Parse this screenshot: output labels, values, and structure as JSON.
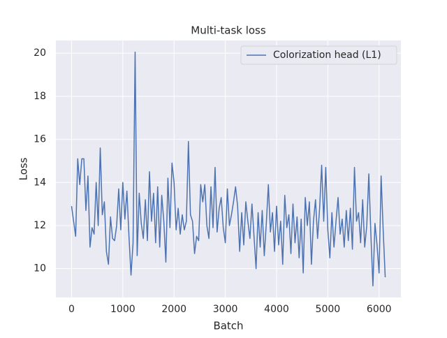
{
  "chart_data": {
    "type": "line",
    "title": "Multi-task loss",
    "x_label": "Batch",
    "y_label": "Loss",
    "x": [
      0,
      40,
      80,
      120,
      160,
      200,
      240,
      280,
      320,
      360,
      400,
      440,
      480,
      520,
      560,
      600,
      640,
      680,
      720,
      760,
      800,
      840,
      880,
      920,
      960,
      1000,
      1040,
      1080,
      1120,
      1160,
      1200,
      1240,
      1280,
      1320,
      1360,
      1400,
      1440,
      1480,
      1520,
      1560,
      1600,
      1640,
      1680,
      1720,
      1760,
      1800,
      1840,
      1880,
      1920,
      1960,
      2000,
      2040,
      2080,
      2120,
      2160,
      2200,
      2240,
      2280,
      2320,
      2360,
      2400,
      2440,
      2480,
      2520,
      2560,
      2600,
      2640,
      2680,
      2720,
      2760,
      2800,
      2840,
      2880,
      2920,
      2960,
      3000,
      3040,
      3080,
      3120,
      3160,
      3200,
      3240,
      3280,
      3320,
      3360,
      3400,
      3440,
      3480,
      3520,
      3560,
      3600,
      3640,
      3680,
      3720,
      3760,
      3800,
      3840,
      3880,
      3920,
      3960,
      4000,
      4040,
      4080,
      4120,
      4160,
      4200,
      4240,
      4280,
      4320,
      4360,
      4400,
      4440,
      4480,
      4520,
      4560,
      4600,
      4640,
      4680,
      4720,
      4760,
      4800,
      4840,
      4880,
      4920,
      4960,
      5000,
      5040,
      5080,
      5120,
      5160,
      5200,
      5240,
      5280,
      5320,
      5360,
      5400,
      5440,
      5480,
      5520,
      5560,
      5600,
      5640,
      5680,
      5720,
      5760,
      5800,
      5840,
      5880,
      5920,
      5960,
      6000,
      6040,
      6080,
      6120
    ],
    "series": [
      {
        "name": "Colorization head (L1)",
        "color": "#4c72b0",
        "values": [
          12.9,
          12.2,
          11.5,
          15.1,
          13.9,
          15.1,
          15.1,
          12.7,
          14.3,
          11.0,
          11.9,
          11.6,
          14.0,
          12.0,
          15.6,
          12.5,
          13.1,
          10.8,
          10.2,
          12.4,
          11.4,
          11.3,
          12.0,
          13.7,
          11.8,
          14.0,
          12.3,
          13.6,
          11.5,
          9.7,
          11.2,
          20.05,
          10.6,
          13.5,
          12.1,
          11.4,
          13.2,
          11.3,
          14.5,
          12.2,
          13.5,
          11.2,
          13.8,
          11.0,
          13.4,
          12.2,
          10.3,
          14.2,
          11.9,
          14.9,
          14.0,
          11.8,
          12.8,
          11.6,
          12.5,
          11.8,
          12.2,
          15.9,
          12.5,
          12.2,
          10.7,
          11.5,
          11.3,
          13.9,
          13.1,
          13.9,
          12.0,
          11.4,
          13.8,
          11.9,
          14.7,
          11.7,
          12.8,
          13.3,
          11.9,
          11.2,
          13.7,
          12.0,
          12.5,
          13.1,
          13.8,
          12.9,
          10.8,
          12.6,
          11.1,
          13.1,
          12.2,
          11.4,
          13.0,
          11.5,
          10.0,
          12.6,
          11.0,
          12.7,
          10.6,
          12.1,
          13.9,
          11.7,
          12.6,
          10.8,
          12.9,
          11.1,
          12.2,
          10.2,
          13.4,
          11.9,
          12.5,
          10.7,
          13.0,
          11.2,
          12.4,
          10.5,
          12.3,
          9.8,
          13.3,
          12.0,
          13.1,
          10.2,
          12.2,
          13.2,
          11.4,
          12.8,
          14.8,
          12.2,
          14.7,
          11.8,
          10.5,
          12.6,
          11.0,
          12.2,
          13.3,
          11.6,
          12.3,
          11.0,
          12.7,
          11.3,
          12.8,
          10.9,
          14.7,
          12.2,
          12.6,
          11.2,
          13.2,
          11.0,
          12.0,
          14.4,
          11.6,
          9.2,
          12.1,
          11.1,
          9.8,
          14.3,
          11.8,
          9.6
        ]
      }
    ],
    "xlim": [
      -306,
      6426
    ],
    "ylim": [
      8.66,
      20.59
    ],
    "xticks": [
      0,
      1000,
      2000,
      3000,
      4000,
      5000,
      6000
    ],
    "yticks": [
      10,
      12,
      14,
      16,
      18,
      20
    ],
    "grid": true,
    "legend_position": "upper right"
  }
}
